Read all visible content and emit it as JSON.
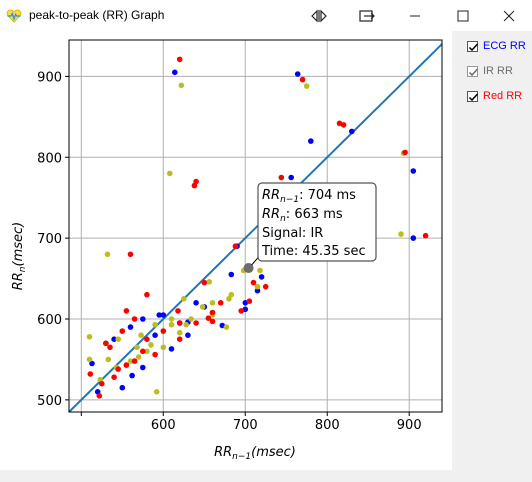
{
  "window": {
    "title": "peak-to-peak (RR) Graph"
  },
  "legend": {
    "items": [
      {
        "label": "ECG RR",
        "checked": true,
        "color": "#0000ff",
        "disabled": false
      },
      {
        "label": "IR RR",
        "checked": true,
        "color": "#6d6d6d",
        "disabled": true
      },
      {
        "label": "Red RR",
        "checked": true,
        "color": "#ff0000",
        "disabled": false
      }
    ]
  },
  "tooltip": {
    "line1": "704 ms",
    "line2": "663 ms",
    "line3": "Signal: IR",
    "line4": "Time: 45.35 sec"
  },
  "chart_data": {
    "type": "scatter",
    "xlabel": "RR_{n-1}(msec)",
    "ylabel": "RR_n(msec)",
    "xlim": [
      485,
      940
    ],
    "ylim": [
      485,
      945
    ],
    "xticks": [
      500,
      600,
      700,
      800,
      900
    ],
    "yticks": [
      500,
      600,
      700,
      800,
      900
    ],
    "xtick_labels": [
      "",
      "600",
      "700",
      "800",
      "900"
    ],
    "ytick_labels": [
      "500",
      "600",
      "700",
      "800",
      "900"
    ],
    "grid": true,
    "identity_line": true,
    "highlight_point": [
      704,
      663
    ],
    "series": [
      {
        "key": "ecg",
        "color": "#0000ff",
        "points": [
          [
            614,
            905
          ],
          [
            764,
            903
          ],
          [
            780,
            820
          ],
          [
            830,
            832
          ],
          [
            905,
            783
          ],
          [
            905,
            700
          ],
          [
            756,
            775
          ],
          [
            760,
            748
          ],
          [
            690,
            690
          ],
          [
            683,
            655
          ],
          [
            650,
            615
          ],
          [
            620,
            595
          ],
          [
            630,
            580
          ],
          [
            610,
            563
          ],
          [
            595,
            605
          ],
          [
            590,
            580
          ],
          [
            575,
            540
          ],
          [
            562,
            530
          ],
          [
            560,
            590
          ],
          [
            550,
            515
          ],
          [
            513,
            545
          ],
          [
            520,
            510
          ],
          [
            530,
            570
          ],
          [
            540,
            575
          ],
          [
            600,
            605
          ],
          [
            575,
            600
          ],
          [
            640,
            620
          ],
          [
            672,
            592
          ],
          [
            630,
            596
          ],
          [
            660,
            607
          ],
          [
            700,
            620
          ],
          [
            700,
            612
          ],
          [
            715,
            635
          ],
          [
            720,
            652
          ]
        ]
      },
      {
        "key": "ir",
        "color": "#bcbd22",
        "points": [
          [
            622,
            889
          ],
          [
            608,
            780
          ],
          [
            775,
            888
          ],
          [
            752,
            760
          ],
          [
            758,
            760
          ],
          [
            718,
            690
          ],
          [
            733,
            710
          ],
          [
            730,
            695
          ],
          [
            715,
            640
          ],
          [
            740,
            696
          ],
          [
            680,
            625
          ],
          [
            677,
            590
          ],
          [
            660,
            605
          ],
          [
            625,
            625
          ],
          [
            610,
            593
          ],
          [
            600,
            565
          ],
          [
            580,
            560
          ],
          [
            545,
            575
          ],
          [
            543,
            540
          ],
          [
            533,
            550
          ],
          [
            523,
            525
          ],
          [
            510,
            578
          ],
          [
            510,
            550
          ],
          [
            592,
            510
          ],
          [
            610,
            600
          ],
          [
            590,
            593
          ],
          [
            532,
            680
          ],
          [
            893,
            805
          ],
          [
            890,
            705
          ],
          [
            847,
            735
          ],
          [
            850,
            754
          ],
          [
            698,
            660
          ],
          [
            656,
            646
          ],
          [
            660,
            620
          ],
          [
            648,
            615
          ],
          [
            634,
            600
          ],
          [
            628,
            593
          ],
          [
            620,
            583
          ],
          [
            585,
            568
          ],
          [
            570,
            553
          ],
          [
            560,
            548
          ],
          [
            555,
            543
          ],
          [
            573,
            580
          ],
          [
            568,
            565
          ],
          [
            683,
            630
          ],
          [
            718,
            660
          ]
        ]
      },
      {
        "key": "red",
        "color": "#ff0000",
        "points": [
          [
            620,
            921
          ],
          [
            770,
            896
          ],
          [
            815,
            842
          ],
          [
            820,
            840
          ],
          [
            895,
            806
          ],
          [
            920,
            703
          ],
          [
            744,
            775
          ],
          [
            688,
            690
          ],
          [
            670,
            620
          ],
          [
            660,
            608
          ],
          [
            640,
            595
          ],
          [
            620,
            575
          ],
          [
            600,
            585
          ],
          [
            590,
            556
          ],
          [
            580,
            575
          ],
          [
            575,
            560
          ],
          [
            565,
            548
          ],
          [
            555,
            543
          ],
          [
            545,
            538
          ],
          [
            540,
            528
          ],
          [
            525,
            520
          ],
          [
            522,
            505
          ],
          [
            511,
            532
          ],
          [
            530,
            570
          ],
          [
            555,
            610
          ],
          [
            640,
            770
          ],
          [
            638,
            765
          ],
          [
            618,
            610
          ],
          [
            620,
            595
          ],
          [
            560,
            680
          ],
          [
            580,
            630
          ],
          [
            650,
            645
          ],
          [
            655,
            601
          ],
          [
            695,
            610
          ],
          [
            660,
            597
          ],
          [
            705,
            622
          ],
          [
            710,
            645
          ],
          [
            725,
            640
          ],
          [
            535,
            565
          ],
          [
            550,
            585
          ],
          [
            565,
            600
          ]
        ]
      }
    ]
  }
}
